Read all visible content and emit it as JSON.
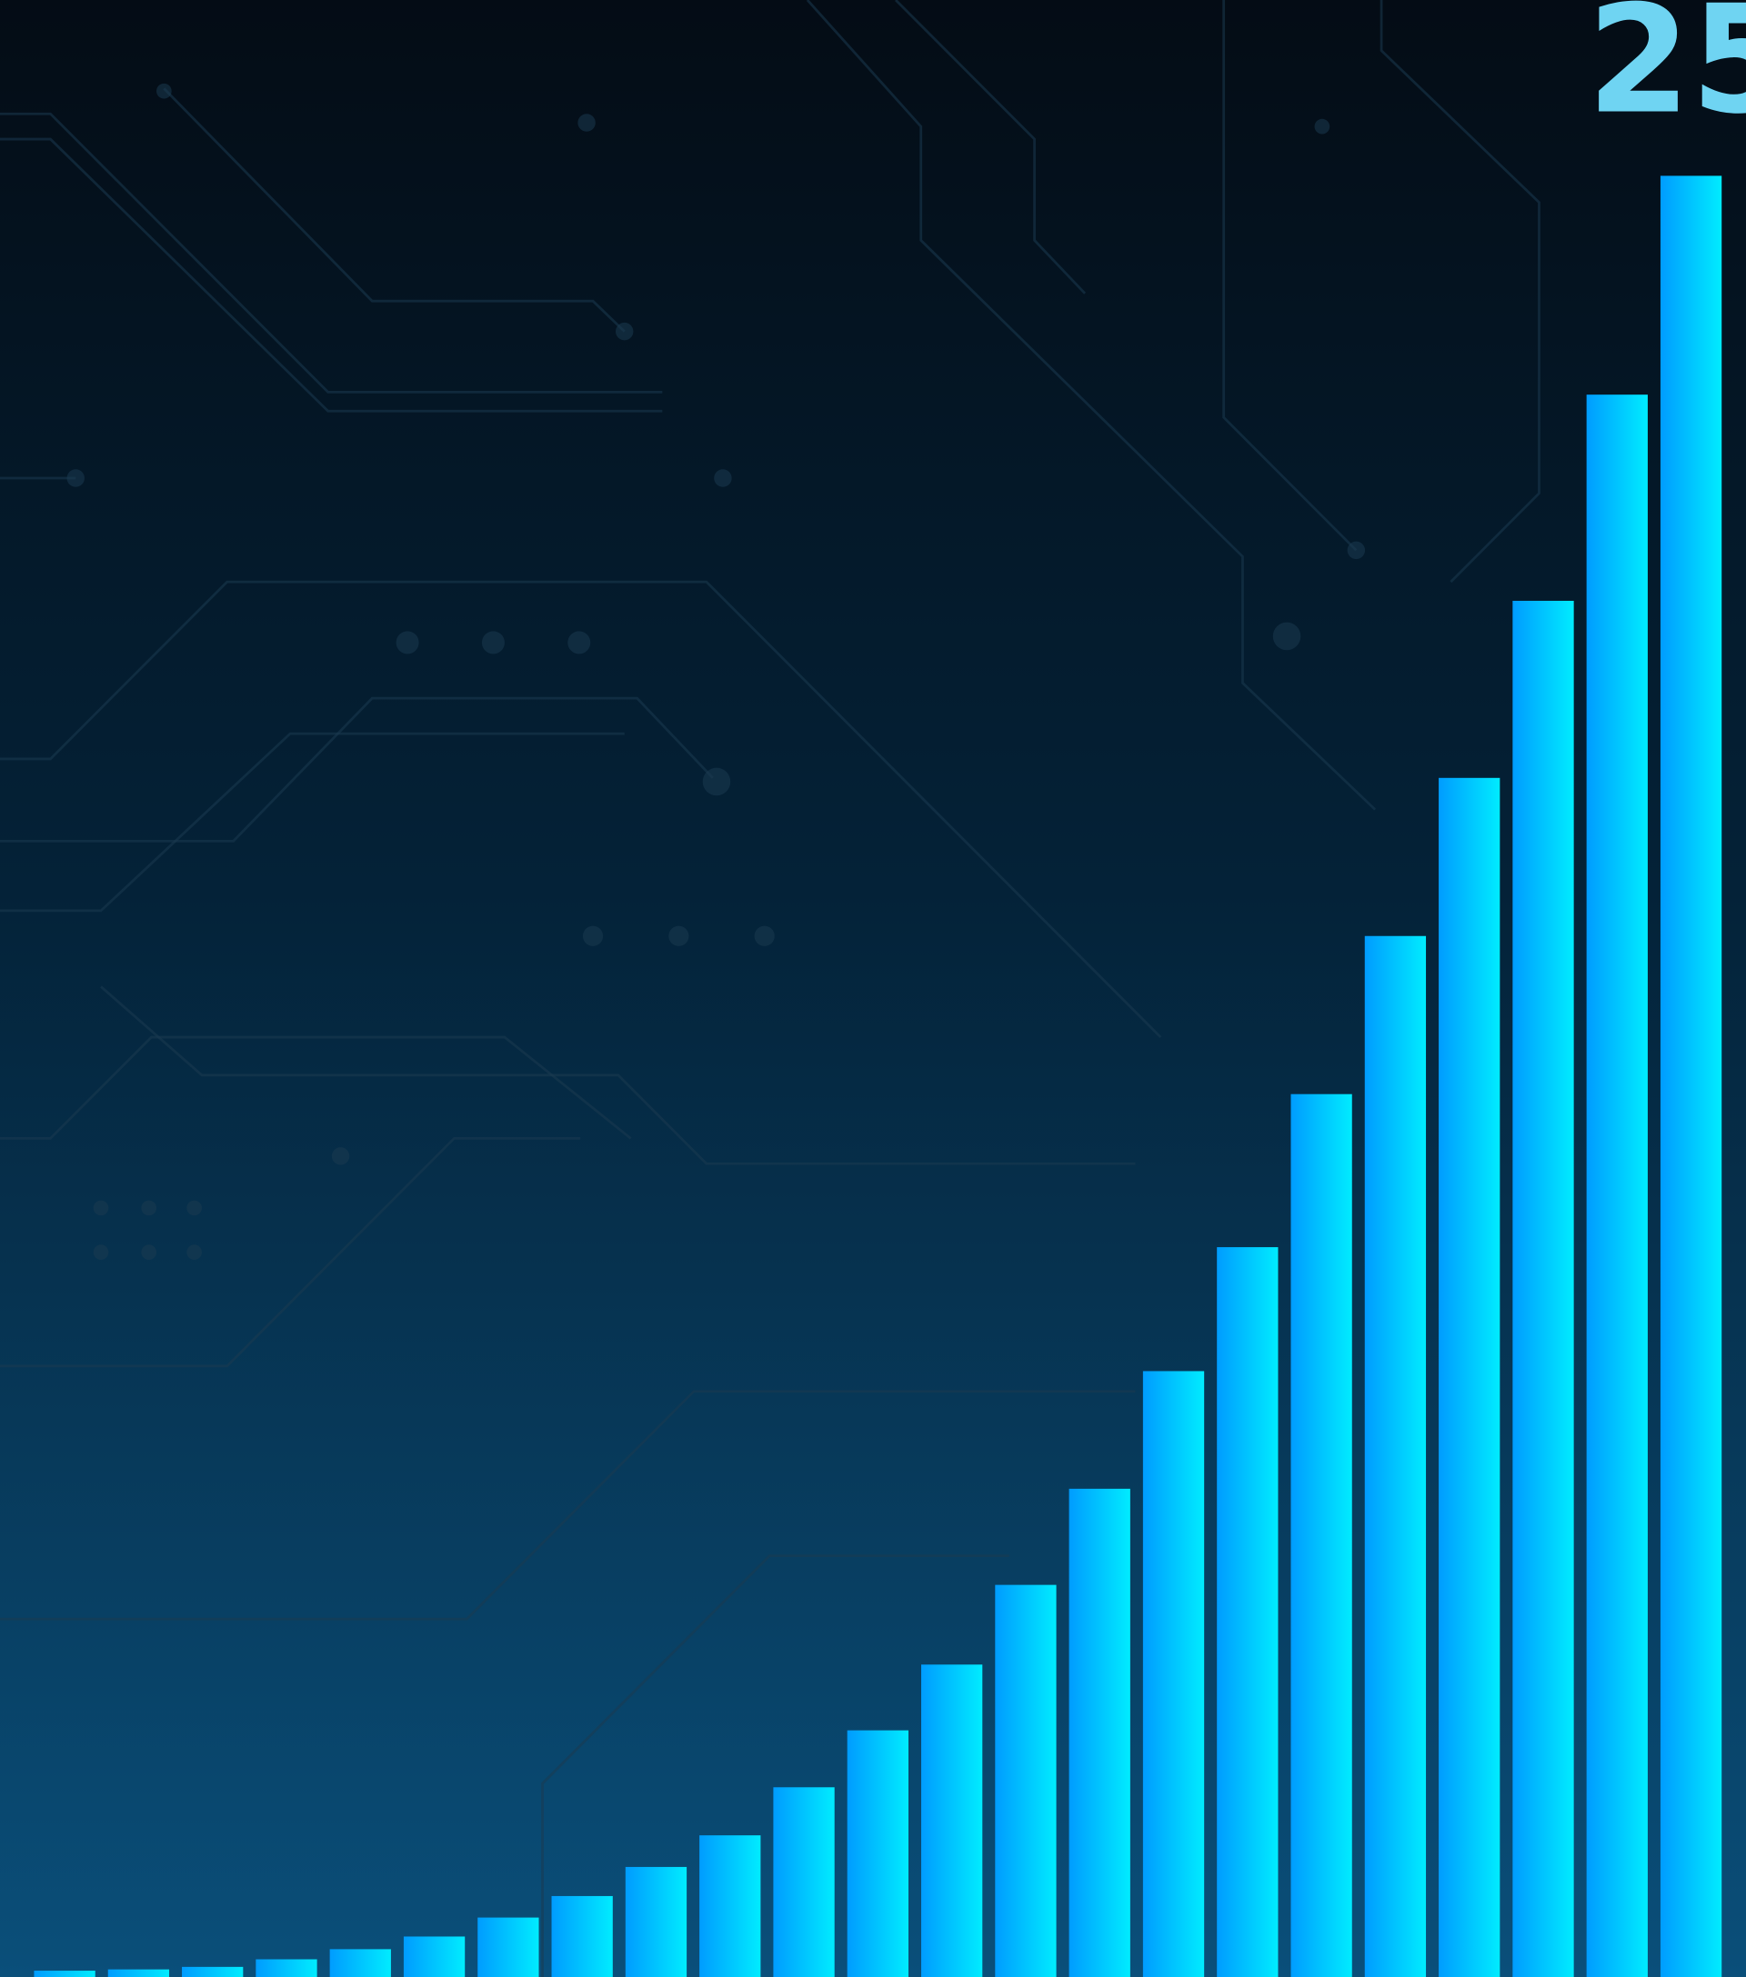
{
  "chart_data": {
    "type": "bar",
    "annotation": "25",
    "values": [
      5,
      6,
      8,
      14,
      22,
      32,
      47,
      64,
      87,
      112,
      150,
      195,
      247,
      310,
      386,
      479,
      577,
      698,
      823,
      948,
      1088,
      1251,
      1424
    ],
    "ylim": [
      0,
      1563
    ],
    "color": "#00c8ff"
  }
}
